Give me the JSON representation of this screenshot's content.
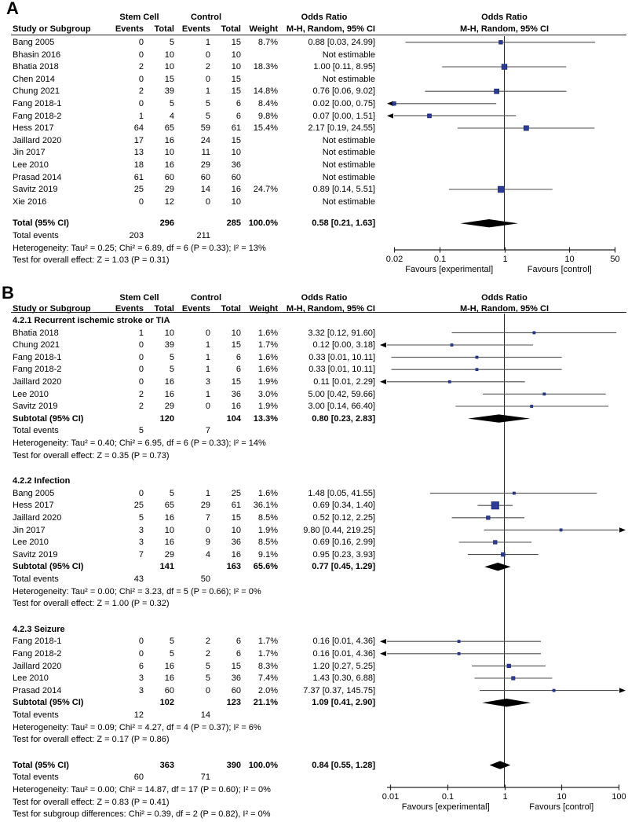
{
  "figure": {
    "bg": "#ffffff",
    "text_color": "#000000",
    "marker_fill": "#2e3c96",
    "marker_stroke": "#1b2a75",
    "ci_color": "#4d4d4d",
    "axis_color": "#262626",
    "diamond_color": "#000000"
  },
  "headers": {
    "group1": "Stem Cell",
    "group2": "Control",
    "odds_ratio": "Odds Ratio",
    "study": "Study or Subgroup",
    "events": "Events",
    "total": "Total",
    "weight": "Weight",
    "method": "M-H, Random, 95% CI"
  },
  "chart_data": [
    {
      "type": "forest",
      "panel": "A",
      "effect_measure": "Odds Ratio",
      "model": "M-H, Random, 95% CI",
      "axis": {
        "scale": "log",
        "min": 0.02,
        "max": 50,
        "ticks": [
          0.02,
          0.1,
          1,
          10,
          50
        ],
        "tick_labels": [
          "0.02",
          "0.1",
          "1",
          "10",
          "50"
        ],
        "left_label": "Favours [experimental]",
        "right_label": "Favours [control]"
      },
      "rows": [
        {
          "type": "study",
          "study": "Bang 2005",
          "e1": "0",
          "t1": "5",
          "e2": "1",
          "t2": "15",
          "w": "8.7%",
          "ci": "0.88 [0.03, 24.99]",
          "or": 0.88,
          "lo": 0.03,
          "hi": 24.99,
          "wt": 8.7
        },
        {
          "type": "study",
          "study": "Bhasin 2016",
          "e1": "0",
          "t1": "10",
          "e2": "0",
          "t2": "10",
          "w": "",
          "ci": "Not estimable"
        },
        {
          "type": "study",
          "study": "Bhatia 2018",
          "e1": "2",
          "t1": "10",
          "e2": "2",
          "t2": "10",
          "w": "18.3%",
          "ci": "1.00 [0.11, 8.95]",
          "or": 1.0,
          "lo": 0.11,
          "hi": 8.95,
          "wt": 18.3
        },
        {
          "type": "study",
          "study": "Chen 2014",
          "e1": "0",
          "t1": "15",
          "e2": "0",
          "t2": "15",
          "w": "",
          "ci": "Not estimable"
        },
        {
          "type": "study",
          "study": "Chung 2021",
          "e1": "2",
          "t1": "39",
          "e2": "1",
          "t2": "15",
          "w": "14.8%",
          "ci": "0.76 [0.06, 9.02]",
          "or": 0.76,
          "lo": 0.06,
          "hi": 9.02,
          "wt": 14.8
        },
        {
          "type": "study",
          "study": "Fang 2018-1",
          "e1": "0",
          "t1": "5",
          "e2": "5",
          "t2": "6",
          "w": "8.4%",
          "ci": "0.02 [0.00, 0.75]",
          "or": 0.02,
          "lo": 0.003,
          "hi": 0.75,
          "wt": 8.4
        },
        {
          "type": "study",
          "study": "Fang 2018-2",
          "e1": "1",
          "t1": "4",
          "e2": "5",
          "t2": "6",
          "w": "9.8%",
          "ci": "0.07 [0.00, 1.51]",
          "or": 0.07,
          "lo": 0.003,
          "hi": 1.51,
          "wt": 9.8
        },
        {
          "type": "study",
          "study": "Hess 2017",
          "e1": "64",
          "t1": "65",
          "e2": "59",
          "t2": "61",
          "w": "15.4%",
          "ci": "2.17 [0.19, 24.55]",
          "or": 2.17,
          "lo": 0.19,
          "hi": 24.55,
          "wt": 15.4
        },
        {
          "type": "study",
          "study": "Jaillard 2020",
          "e1": "17",
          "t1": "16",
          "e2": "24",
          "t2": "15",
          "w": "",
          "ci": "Not estimable"
        },
        {
          "type": "study",
          "study": "Jin 2017",
          "e1": "13",
          "t1": "10",
          "e2": "11",
          "t2": "10",
          "w": "",
          "ci": "Not estimable"
        },
        {
          "type": "study",
          "study": "Lee 2010",
          "e1": "18",
          "t1": "16",
          "e2": "29",
          "t2": "36",
          "w": "",
          "ci": "Not estimable"
        },
        {
          "type": "study",
          "study": "Prasad 2014",
          "e1": "61",
          "t1": "60",
          "e2": "60",
          "t2": "60",
          "w": "",
          "ci": "Not estimable"
        },
        {
          "type": "study",
          "study": "Savitz 2019",
          "e1": "25",
          "t1": "29",
          "e2": "14",
          "t2": "16",
          "w": "24.7%",
          "ci": "0.89 [0.14, 5.51]",
          "or": 0.89,
          "lo": 0.14,
          "hi": 5.51,
          "wt": 24.7
        },
        {
          "type": "study",
          "study": "Xie 2016",
          "e1": "0",
          "t1": "12",
          "e2": "0",
          "t2": "10",
          "w": "",
          "ci": "Not estimable"
        },
        {
          "type": "spacer"
        },
        {
          "type": "total",
          "study": "Total (95% CI)",
          "t1": "296",
          "t2": "285",
          "w": "100.0%",
          "ci": "0.58 [0.21, 1.63]",
          "or": 0.58,
          "lo": 0.21,
          "hi": 1.63
        },
        {
          "type": "events",
          "study": "Total events",
          "e1": "203",
          "e2": "211"
        },
        {
          "type": "text",
          "text": "Heterogeneity: Tau² = 0.25; Chi² = 6.89, df = 6 (P = 0.33); I² = 13%"
        },
        {
          "type": "text",
          "text": "Test for overall effect: Z = 1.03 (P = 0.31)"
        }
      ]
    },
    {
      "type": "forest",
      "panel": "B",
      "effect_measure": "Odds Ratio",
      "model": "M-H, Random, 95% CI",
      "axis": {
        "scale": "log",
        "min": 0.01,
        "max": 100,
        "ticks": [
          0.01,
          0.1,
          1,
          10,
          100
        ],
        "tick_labels": [
          "0.01",
          "0.1",
          "1",
          "10",
          "100"
        ],
        "left_label": "Favours [experimental]",
        "right_label": "Favours [control]"
      },
      "rows": [
        {
          "type": "section",
          "study": "4.2.1 Recurrent ischemic stroke or TIA"
        },
        {
          "type": "study",
          "study": "Bhatia 2018",
          "e1": "1",
          "t1": "10",
          "e2": "0",
          "t2": "10",
          "w": "1.6%",
          "ci": "3.32 [0.12, 91.60]",
          "or": 3.32,
          "lo": 0.12,
          "hi": 91.6,
          "wt": 1.6
        },
        {
          "type": "study",
          "study": "Chung 2021",
          "e1": "0",
          "t1": "39",
          "e2": "1",
          "t2": "15",
          "w": "1.7%",
          "ci": "0.12 [0.00, 3.18]",
          "or": 0.12,
          "lo": 0.003,
          "hi": 3.18,
          "wt": 1.7
        },
        {
          "type": "study",
          "study": "Fang 2018-1",
          "e1": "0",
          "t1": "5",
          "e2": "1",
          "t2": "6",
          "w": "1.6%",
          "ci": "0.33 [0.01, 10.11]",
          "or": 0.33,
          "lo": 0.0105,
          "hi": 10.11,
          "wt": 1.6
        },
        {
          "type": "study",
          "study": "Fang 2018-2",
          "e1": "0",
          "t1": "5",
          "e2": "1",
          "t2": "6",
          "w": "1.6%",
          "ci": "0.33 [0.01, 10.11]",
          "or": 0.33,
          "lo": 0.0105,
          "hi": 10.11,
          "wt": 1.6
        },
        {
          "type": "study",
          "study": "Jaillard 2020",
          "e1": "0",
          "t1": "16",
          "e2": "3",
          "t2": "15",
          "w": "1.9%",
          "ci": "0.11 [0.01, 2.29]",
          "or": 0.11,
          "lo": 0.005,
          "hi": 2.29,
          "wt": 1.9
        },
        {
          "type": "study",
          "study": "Lee 2010",
          "e1": "2",
          "t1": "16",
          "e2": "1",
          "t2": "36",
          "w": "3.0%",
          "ci": "5.00 [0.42, 59.66]",
          "or": 5.0,
          "lo": 0.42,
          "hi": 59.66,
          "wt": 3.0
        },
        {
          "type": "study",
          "study": "Savitz 2019",
          "e1": "2",
          "t1": "29",
          "e2": "0",
          "t2": "16",
          "w": "1.9%",
          "ci": "3.00 [0.14, 66.40]",
          "or": 3.0,
          "lo": 0.14,
          "hi": 66.4,
          "wt": 1.9
        },
        {
          "type": "subtotal",
          "study": "Subtotal (95% CI)",
          "t1": "120",
          "t2": "104",
          "w": "13.3%",
          "ci": "0.80 [0.23, 2.83]",
          "or": 0.8,
          "lo": 0.23,
          "hi": 2.83
        },
        {
          "type": "events",
          "study": "Total events",
          "e1": "5",
          "e2": "7"
        },
        {
          "type": "text",
          "text": "Heterogeneity: Tau² = 0.40; Chi² = 6.95, df = 6 (P = 0.33); I² = 14%"
        },
        {
          "type": "text",
          "text": "Test for overall effect: Z = 0.35 (P = 0.73)"
        },
        {
          "type": "spacer"
        },
        {
          "type": "section",
          "study": "4.2.2 Infection"
        },
        {
          "type": "study",
          "study": "Bang 2005",
          "e1": "0",
          "t1": "5",
          "e2": "1",
          "t2": "25",
          "w": "1.6%",
          "ci": "1.48 [0.05, 41.55]",
          "or": 1.48,
          "lo": 0.05,
          "hi": 41.55,
          "wt": 1.6
        },
        {
          "type": "study",
          "study": "Hess 2017",
          "e1": "25",
          "t1": "65",
          "e2": "29",
          "t2": "61",
          "w": "36.1%",
          "ci": "0.69 [0.34, 1.40]",
          "or": 0.69,
          "lo": 0.34,
          "hi": 1.4,
          "wt": 36.1
        },
        {
          "type": "study",
          "study": "Jaillard 2020",
          "e1": "5",
          "t1": "16",
          "e2": "7",
          "t2": "15",
          "w": "8.5%",
          "ci": "0.52 [0.12, 2.25]",
          "or": 0.52,
          "lo": 0.12,
          "hi": 2.25,
          "wt": 8.5
        },
        {
          "type": "study",
          "study": "Jin 2017",
          "e1": "3",
          "t1": "10",
          "e2": "0",
          "t2": "10",
          "w": "1.9%",
          "ci": "9.80 [0.44, 219.25]",
          "or": 9.8,
          "lo": 0.44,
          "hi": 219.25,
          "wt": 1.9
        },
        {
          "type": "study",
          "study": "Lee 2010",
          "e1": "3",
          "t1": "16",
          "e2": "9",
          "t2": "36",
          "w": "8.5%",
          "ci": "0.69 [0.16, 2.99]",
          "or": 0.69,
          "lo": 0.16,
          "hi": 2.99,
          "wt": 8.5
        },
        {
          "type": "study",
          "study": "Savitz 2019",
          "e1": "7",
          "t1": "29",
          "e2": "4",
          "t2": "16",
          "w": "9.1%",
          "ci": "0.95 [0.23, 3.93]",
          "or": 0.95,
          "lo": 0.23,
          "hi": 3.93,
          "wt": 9.1
        },
        {
          "type": "subtotal",
          "study": "Subtotal (95% CI)",
          "t1": "141",
          "t2": "163",
          "w": "65.6%",
          "ci": "0.77 [0.45, 1.29]",
          "or": 0.77,
          "lo": 0.45,
          "hi": 1.29
        },
        {
          "type": "events",
          "study": "Total events",
          "e1": "43",
          "e2": "50"
        },
        {
          "type": "text",
          "text": "Heterogeneity: Tau² = 0.00; Chi² = 3.23, df = 5 (P = 0.66); I² = 0%"
        },
        {
          "type": "text",
          "text": "Test for overall effect: Z = 1.00 (P = 0.32)"
        },
        {
          "type": "spacer"
        },
        {
          "type": "section",
          "study": "4.2.3 Seizure"
        },
        {
          "type": "study",
          "study": "Fang 2018-1",
          "e1": "0",
          "t1": "5",
          "e2": "2",
          "t2": "6",
          "w": "1.7%",
          "ci": "0.16 [0.01, 4.36]",
          "or": 0.16,
          "lo": 0.005,
          "hi": 4.36,
          "wt": 1.7
        },
        {
          "type": "study",
          "study": "Fang 2018-2",
          "e1": "0",
          "t1": "5",
          "e2": "2",
          "t2": "6",
          "w": "1.7%",
          "ci": "0.16 [0.01, 4.36]",
          "or": 0.16,
          "lo": 0.005,
          "hi": 4.36,
          "wt": 1.7
        },
        {
          "type": "study",
          "study": "Jaillard 2020",
          "e1": "6",
          "t1": "16",
          "e2": "5",
          "t2": "15",
          "w": "8.3%",
          "ci": "1.20 [0.27, 5.25]",
          "or": 1.2,
          "lo": 0.27,
          "hi": 5.25,
          "wt": 8.3
        },
        {
          "type": "study",
          "study": "Lee 2010",
          "e1": "3",
          "t1": "16",
          "e2": "5",
          "t2": "36",
          "w": "7.4%",
          "ci": "1.43 [0.30, 6.88]",
          "or": 1.43,
          "lo": 0.3,
          "hi": 6.88,
          "wt": 7.4
        },
        {
          "type": "study",
          "study": "Prasad 2014",
          "e1": "3",
          "t1": "60",
          "e2": "0",
          "t2": "60",
          "w": "2.0%",
          "ci": "7.37 [0.37, 145.75]",
          "or": 7.37,
          "lo": 0.37,
          "hi": 145.75,
          "wt": 2.0
        },
        {
          "type": "subtotal",
          "study": "Subtotal (95% CI)",
          "t1": "102",
          "t2": "123",
          "w": "21.1%",
          "ci": "1.09 [0.41, 2.90]",
          "or": 1.09,
          "lo": 0.41,
          "hi": 2.9
        },
        {
          "type": "events",
          "study": "Total events",
          "e1": "12",
          "e2": "14"
        },
        {
          "type": "text",
          "text": "Heterogeneity: Tau² = 0.09; Chi² = 4.27, df = 4 (P = 0.37); I² = 6%"
        },
        {
          "type": "text",
          "text": "Test for overall effect: Z = 0.17 (P = 0.86)"
        },
        {
          "type": "spacer"
        },
        {
          "type": "total",
          "study": "Total (95% CI)",
          "t1": "363",
          "t2": "390",
          "w": "100.0%",
          "ci": "0.84 [0.55, 1.28]",
          "or": 0.84,
          "lo": 0.55,
          "hi": 1.28
        },
        {
          "type": "events",
          "study": "Total events",
          "e1": "60",
          "e2": "71"
        },
        {
          "type": "text",
          "text": "Heterogeneity: Tau² = 0.00; Chi² = 14.87, df = 17 (P = 0.60); I² = 0%"
        },
        {
          "type": "text",
          "text": "Test for overall effect: Z = 0.83 (P = 0.41)"
        },
        {
          "type": "text",
          "text": "Test for subgroup differences: Chi² = 0.39, df = 2 (P = 0.82), I² = 0%"
        }
      ]
    }
  ]
}
